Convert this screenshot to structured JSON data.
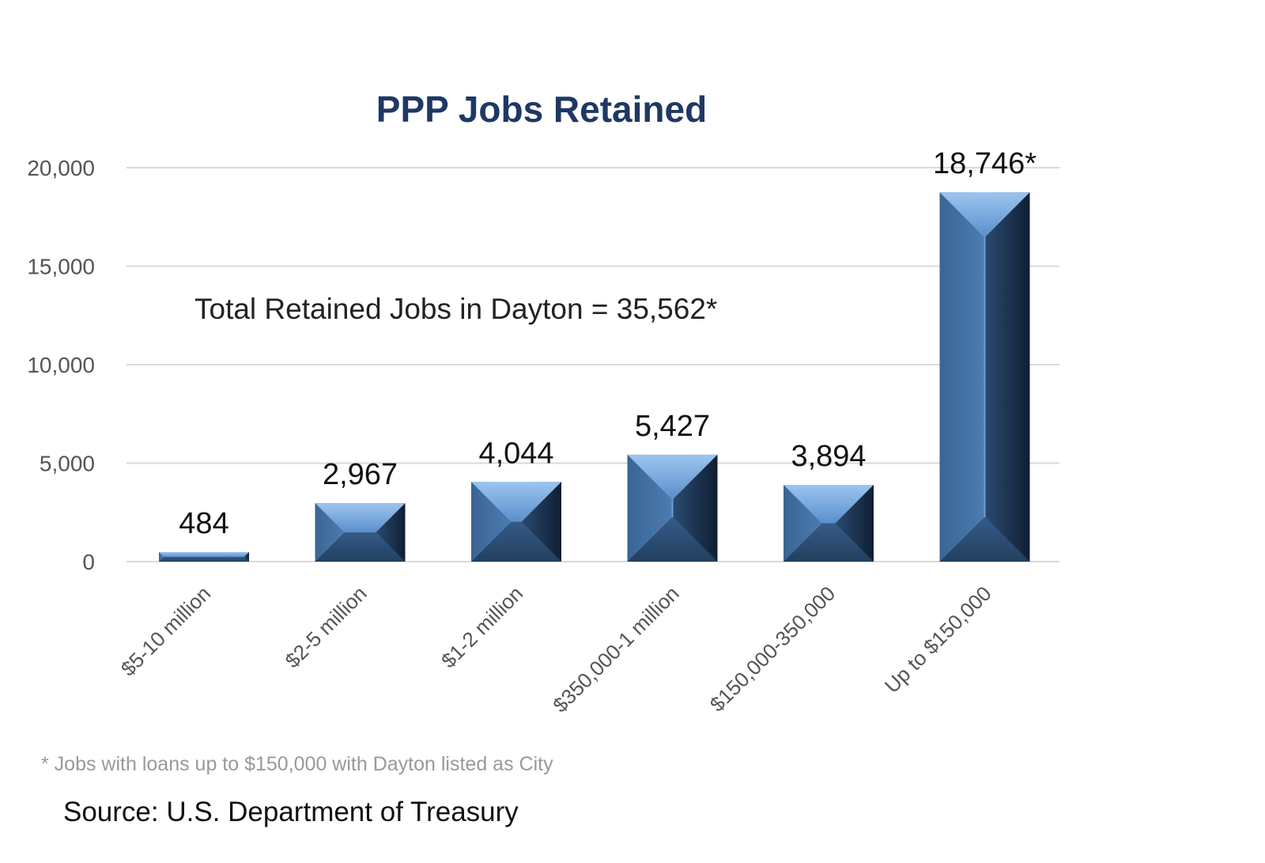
{
  "chart_data": {
    "type": "bar",
    "title": "PPP Jobs Retained",
    "categories": [
      "$5-10 million",
      "$2-5 million",
      "$1-2 million",
      "$350,000-1 million",
      "$150,000-350,000",
      "Up to $150,000"
    ],
    "values": [
      484,
      2967,
      4044,
      5427,
      3894,
      18746
    ],
    "value_labels": [
      "484",
      "2,967",
      "4,044",
      "5,427",
      "3,894",
      "18,746*"
    ],
    "ylim": [
      0,
      20000
    ],
    "yticks": [
      0,
      5000,
      10000,
      15000,
      20000
    ],
    "ytick_labels": [
      "0",
      "5,000",
      "10,000",
      "15,000",
      "20,000"
    ],
    "grid": true,
    "bar_color": "#4a7ab0",
    "annotation": "Total Retained Jobs in Dayton = 35,562*",
    "footnote": "* Jobs with loans up to $150,000 with Dayton listed as City",
    "source": "Source:  U.S. Department of Treasury"
  }
}
